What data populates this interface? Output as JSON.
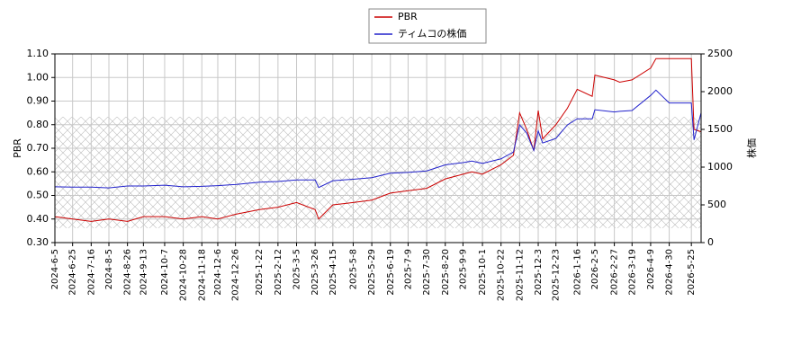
{
  "chart_data": {
    "type": "line",
    "x": [
      "2024-6-5",
      "2024-6-25",
      "2024-7-16",
      "2024-8-5",
      "2024-8-26",
      "2024-9-13",
      "2024-10-7",
      "2024-10-28",
      "2024-11-18",
      "2024-12-6",
      "2024-12-26",
      "2025-1-22",
      "2025-2-12",
      "2025-3-5",
      "2025-3-26",
      "2025-3-30",
      "2025-4-15",
      "2025-5-8",
      "2025-5-29",
      "2025-6-19",
      "2025-7-9",
      "2025-7-30",
      "2025-8-20",
      "2025-9-9",
      "2025-9-19",
      "2025-10-1",
      "2025-10-22",
      "2025-11-5",
      "2025-11-12",
      "2025-11-20",
      "2025-11-28",
      "2025-12-3",
      "2025-12-8",
      "2025-12-23",
      "2026-1-5",
      "2026-1-16",
      "2026-2-2",
      "2026-2-5",
      "2026-2-27",
      "2026-3-5",
      "2026-3-19",
      "2026-4-9",
      "2026-4-15",
      "2026-4-30",
      "2026-5-25",
      "2026-5-28",
      "2026-6-5"
    ],
    "series": [
      {
        "name": "PBR",
        "color": "#cc0000",
        "values": [
          0.41,
          0.4,
          0.39,
          0.4,
          0.39,
          0.41,
          0.41,
          0.4,
          0.41,
          0.4,
          0.42,
          0.44,
          0.45,
          0.47,
          0.44,
          0.4,
          0.46,
          0.47,
          0.48,
          0.51,
          0.52,
          0.53,
          0.57,
          0.59,
          0.6,
          0.59,
          0.63,
          0.67,
          0.85,
          0.78,
          0.69,
          0.86,
          0.74,
          0.8,
          0.87,
          0.95,
          0.92,
          1.01,
          0.99,
          0.98,
          0.99,
          1.04,
          1.08,
          1.08,
          1.08,
          0.78,
          0.77
        ]
      },
      {
        "name": "ティムコの株価",
        "color": "#2222cc",
        "axis": "y2",
        "values": [
          740,
          735,
          735,
          725,
          750,
          750,
          760,
          740,
          745,
          755,
          770,
          800,
          810,
          830,
          830,
          730,
          820,
          840,
          860,
          920,
          930,
          950,
          1030,
          1060,
          1080,
          1050,
          1110,
          1200,
          1560,
          1450,
          1220,
          1480,
          1320,
          1380,
          1560,
          1640,
          1640,
          1760,
          1730,
          1740,
          1750,
          1950,
          2020,
          1850,
          1850,
          1360,
          1720
        ]
      }
    ],
    "xlim": [
      "2024-6-5",
      "2026-6-5"
    ],
    "xticks": [
      "2024-6-5",
      "2024-6-25",
      "2024-7-16",
      "2024-8-5",
      "2024-8-26",
      "2024-9-13",
      "2024-10-7",
      "2024-10-28",
      "2024-11-18",
      "2024-12-6",
      "2024-12-26",
      "2025-1-22",
      "2025-2-12",
      "2025-3-5",
      "2025-3-26",
      "2025-4-15",
      "2025-5-8",
      "2025-5-29",
      "2025-6-19",
      "2025-7-9",
      "2025-7-30",
      "2025-8-20",
      "2025-9-9",
      "2025-10-1",
      "2025-10-22",
      "2025-11-12",
      "2025-12-3",
      "2025-12-23",
      "2026-1-16",
      "2026-2-5",
      "2026-2-27",
      "2026-3-19",
      "2026-4-9",
      "2026-4-30",
      "2026-5-25"
    ],
    "ylabel": "PBR",
    "y2label": "株価",
    "ylim": [
      0.3,
      1.1
    ],
    "yticks": [
      {
        "value": 0.3,
        "label": "0.30"
      },
      {
        "value": 0.4,
        "label": "0.40"
      },
      {
        "value": 0.5,
        "label": "0.50"
      },
      {
        "value": 0.6,
        "label": "0.60"
      },
      {
        "value": 0.7,
        "label": "0.70"
      },
      {
        "value": 0.8,
        "label": "0.80"
      },
      {
        "value": 0.9,
        "label": "0.90"
      },
      {
        "value": 1.0,
        "label": "1.00"
      },
      {
        "value": 1.1,
        "label": "1.10"
      }
    ],
    "y2lim": [
      0,
      2500
    ],
    "y2ticks": [
      0,
      500,
      1000,
      1500,
      2000,
      2500
    ],
    "grid": true
  }
}
